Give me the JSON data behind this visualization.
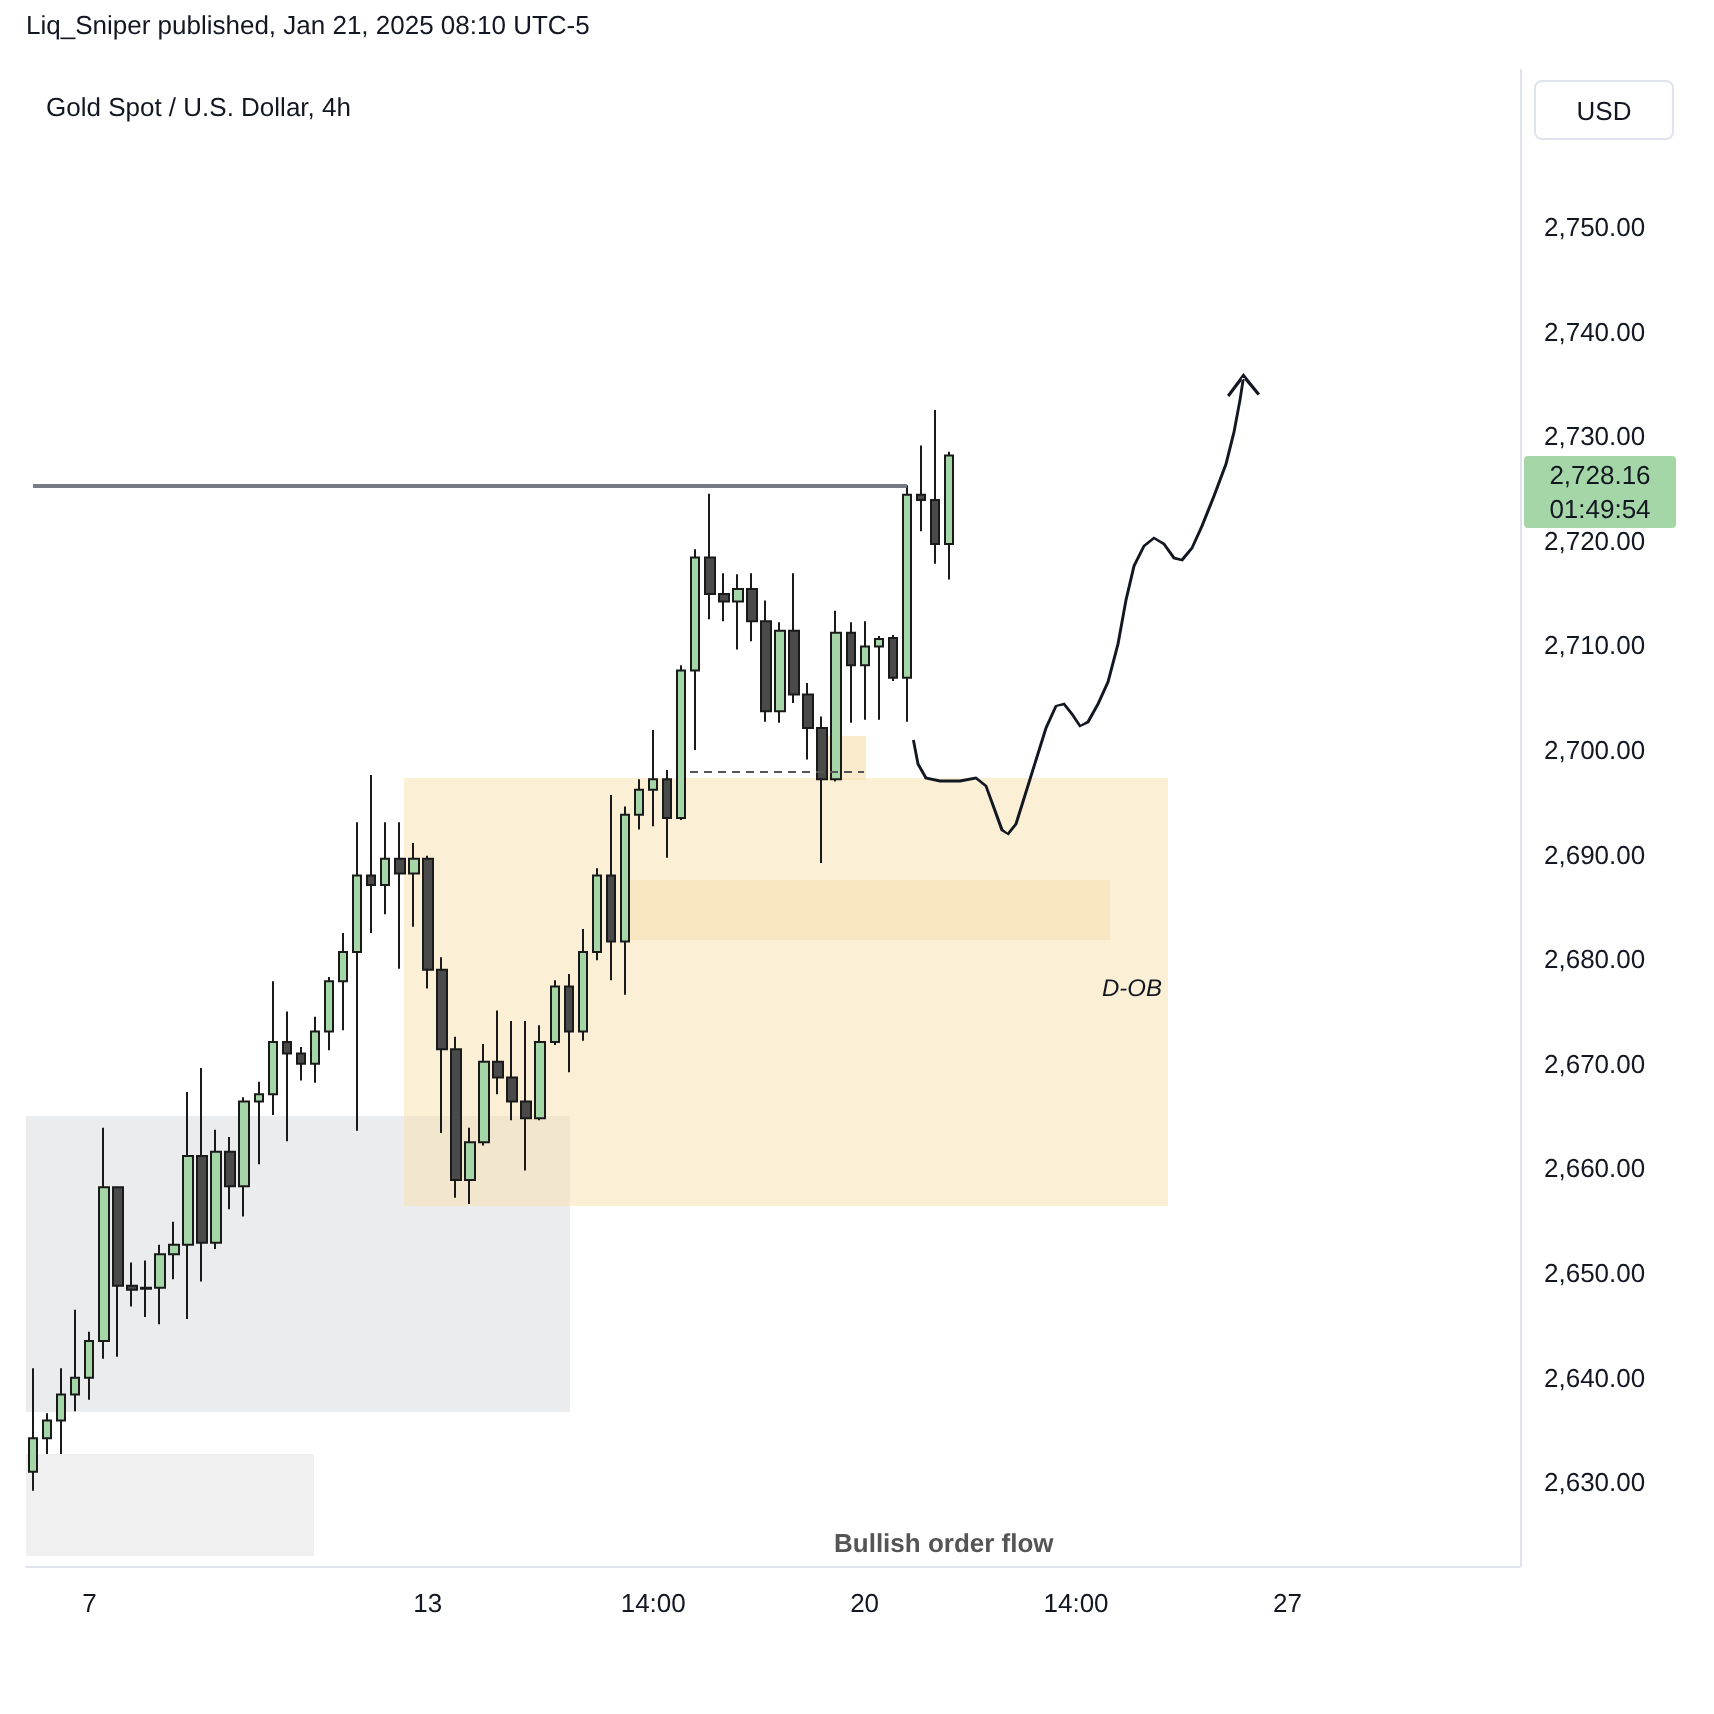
{
  "chart_data": {
    "type": "candlestick",
    "title": "Gold Spot / U.S. Dollar, 4h",
    "ylabel": "USD",
    "grid": false,
    "annotations": [
      "Liq_Sniper published, Jan 21, 2025 08:10 UTC-5",
      "2,728.16",
      "01:49:54",
      "D-OB",
      "Bullish order flow"
    ],
    "ref_lines": [
      {
        "axis": "y",
        "value": 2725.3,
        "color": "#787b86"
      }
    ],
    "ylim": [
      2622,
      2765
    ],
    "yticks": [
      {
        "value": 2630,
        "label": "2,630.00"
      },
      {
        "value": 2640,
        "label": "2,640.00"
      },
      {
        "value": 2650,
        "label": "2,650.00"
      },
      {
        "value": 2660,
        "label": "2,660.00"
      },
      {
        "value": 2670,
        "label": "2,670.00"
      },
      {
        "value": 2680,
        "label": "2,680.00"
      },
      {
        "value": 2690,
        "label": "2,690.00"
      },
      {
        "value": 2700,
        "label": "2,700.00"
      },
      {
        "value": 2710,
        "label": "2,710.00"
      },
      {
        "value": 2720,
        "label": "2,720.00"
      },
      {
        "value": 2730,
        "label": "2,730.00"
      },
      {
        "value": 2740,
        "label": "2,740.00"
      },
      {
        "value": 2750,
        "label": "2,750.00"
      }
    ],
    "categories": [
      null,
      null,
      null,
      null,
      "7",
      null,
      null,
      null,
      null,
      null,
      null,
      null,
      null,
      null,
      null,
      null,
      null,
      null,
      null,
      null,
      null,
      null,
      null,
      null,
      null,
      null,
      null,
      null,
      "13",
      null,
      null,
      null,
      null,
      null,
      null,
      null,
      null,
      null,
      null,
      null,
      null,
      null,
      null,
      null,
      "14:00",
      null,
      null,
      null,
      null,
      null,
      null,
      null,
      null,
      null,
      null,
      null,
      null,
      null,
      null,
      "20",
      null,
      null,
      null,
      null,
      null,
      null,
      null,
      null,
      null,
      null,
      null,
      null,
      null,
      null,
      "14:00",
      null,
      null,
      null,
      null,
      null,
      null,
      null,
      null,
      null,
      null,
      null,
      null,
      null,
      null,
      "27",
      null,
      null,
      null,
      null,
      null,
      null,
      null,
      null,
      null,
      null,
      null,
      null,
      null,
      null,
      null,
      null
    ],
    "colors": [
      "#a5d6a7",
      "#a5d6a7",
      "#a5d6a7",
      "#a5d6a7",
      "#a5d6a7",
      "#a5d6a7",
      "#4a4a4a",
      "#4a4a4a",
      "#a5d6a7",
      "#a5d6a7",
      "#a5d6a7",
      "#a5d6a7",
      "#4a4a4a",
      "#a5d6a7",
      "#4a4a4a",
      "#a5d6a7",
      "#a5d6a7",
      "#a5d6a7",
      "#4a4a4a",
      "#4a4a4a",
      "#a5d6a7",
      "#a5d6a7",
      "#a5d6a7",
      "#a5d6a7",
      "#4a4a4a",
      "#a5d6a7",
      "#4a4a4a",
      "#a5d6a7",
      "#4a4a4a",
      "#4a4a4a",
      "#4a4a4a",
      "#a5d6a7",
      "#a5d6a7",
      "#4a4a4a",
      "#4a4a4a",
      "#4a4a4a",
      "#a5d6a7",
      "#a5d6a7",
      "#4a4a4a",
      "#a5d6a7",
      "#a5d6a7",
      "#4a4a4a",
      "#a5d6a7",
      "#a5d6a7",
      "#a5d6a7",
      "#4a4a4a",
      "#a5d6a7",
      "#a5d6a7",
      "#4a4a4a",
      "#4a4a4a",
      "#a5d6a7",
      "#4a4a4a",
      "#4a4a4a",
      "#a5d6a7",
      "#4a4a4a",
      "#4a4a4a",
      "#4a4a4a",
      "#a5d6a7",
      "#4a4a4a",
      "#a5d6a7",
      "#a5d6a7",
      "#4a4a4a",
      "#a5d6a7",
      "#4a4a4a",
      "#4a4a4a",
      "#a5d6a7",
      null,
      null,
      null,
      null,
      null,
      null,
      null,
      null,
      null,
      null,
      null,
      null,
      null,
      null,
      null,
      null,
      null,
      null,
      null,
      null,
      null,
      null,
      null,
      null,
      null,
      null,
      null,
      null,
      null,
      null,
      null,
      null,
      null,
      null,
      null,
      null,
      null,
      null,
      null,
      null
    ],
    "ohlc": [
      [
        2631.0,
        2640.9,
        2629.2,
        2634.2
      ],
      [
        2634.2,
        2636.6,
        2632.7,
        2635.9
      ],
      [
        2635.9,
        2640.9,
        2632.7,
        2638.4
      ],
      [
        2638.4,
        2646.5,
        2636.8,
        2640.0
      ],
      [
        2640.0,
        2644.4,
        2637.9,
        2643.5
      ],
      [
        2643.5,
        2663.9,
        2641.8,
        2658.2
      ],
      [
        2658.2,
        2658.2,
        2642.0,
        2648.8
      ],
      [
        2648.8,
        2651.0,
        2646.8,
        2648.4
      ],
      [
        2648.5,
        2651.2,
        2645.8,
        2648.6
      ],
      [
        2648.6,
        2652.7,
        2645.1,
        2651.8
      ],
      [
        2651.8,
        2654.9,
        2649.4,
        2652.7
      ],
      [
        2652.7,
        2667.3,
        2645.6,
        2661.2
      ],
      [
        2661.2,
        2669.6,
        2649.2,
        2652.9
      ],
      [
        2652.9,
        2663.7,
        2652.3,
        2661.6
      ],
      [
        2661.6,
        2663.0,
        2656.1,
        2658.3
      ],
      [
        2658.3,
        2666.8,
        2655.4,
        2666.4
      ],
      [
        2666.4,
        2668.3,
        2660.4,
        2667.1
      ],
      [
        2667.1,
        2677.9,
        2665.1,
        2672.1
      ],
      [
        2672.1,
        2675.0,
        2662.6,
        2671.0
      ],
      [
        2671.0,
        2671.6,
        2668.4,
        2670.0
      ],
      [
        2670.0,
        2674.5,
        2668.2,
        2673.1
      ],
      [
        2673.1,
        2678.3,
        2671.3,
        2677.9
      ],
      [
        2677.9,
        2682.5,
        2673.2,
        2680.7
      ],
      [
        2680.7,
        2693.1,
        2663.6,
        2688.0
      ],
      [
        2688.0,
        2697.6,
        2682.5,
        2687.1
      ],
      [
        2687.1,
        2693.1,
        2684.3,
        2689.6
      ],
      [
        2689.6,
        2693.1,
        2679.1,
        2688.2
      ],
      [
        2688.2,
        2691.1,
        2683.1,
        2689.6
      ],
      [
        2689.6,
        2689.9,
        2677.2,
        2679.0
      ],
      [
        2679.0,
        2680.2,
        2663.4,
        2671.4
      ],
      [
        2671.4,
        2672.6,
        2657.2,
        2658.9
      ],
      [
        2658.9,
        2663.9,
        2656.6,
        2662.5
      ],
      [
        2662.5,
        2671.9,
        2662.2,
        2670.2
      ],
      [
        2670.2,
        2675.1,
        2667.1,
        2668.7
      ],
      [
        2668.7,
        2674.1,
        2664.6,
        2666.4
      ],
      [
        2666.4,
        2674.1,
        2659.8,
        2664.8
      ],
      [
        2664.8,
        2673.7,
        2664.6,
        2672.1
      ],
      [
        2672.1,
        2678.0,
        2671.8,
        2677.4
      ],
      [
        2677.4,
        2678.6,
        2669.2,
        2673.1
      ],
      [
        2673.1,
        2682.9,
        2672.2,
        2680.7
      ],
      [
        2680.7,
        2688.7,
        2679.9,
        2688.0
      ],
      [
        2688.0,
        2695.7,
        2678.0,
        2681.7
      ],
      [
        2681.7,
        2694.6,
        2676.6,
        2693.8
      ],
      [
        2693.8,
        2697.2,
        2692.4,
        2696.2
      ],
      [
        2696.2,
        2701.9,
        2692.7,
        2697.2
      ],
      [
        2697.2,
        2698.1,
        2689.7,
        2693.5
      ],
      [
        2693.5,
        2708.1,
        2693.3,
        2707.6
      ],
      [
        2707.6,
        2719.2,
        2700.0,
        2718.4
      ],
      [
        2718.4,
        2724.5,
        2712.5,
        2714.9
      ],
      [
        2714.9,
        2716.9,
        2712.3,
        2714.2
      ],
      [
        2714.2,
        2716.8,
        2709.6,
        2715.4
      ],
      [
        2715.4,
        2716.9,
        2710.4,
        2712.3
      ],
      [
        2712.3,
        2714.3,
        2702.7,
        2703.7
      ],
      [
        2703.7,
        2712.2,
        2702.6,
        2711.4
      ],
      [
        2711.4,
        2716.9,
        2704.5,
        2705.3
      ],
      [
        2705.3,
        2706.4,
        2699.1,
        2702.1
      ],
      [
        2702.1,
        2703.2,
        2689.2,
        2697.2
      ],
      [
        2697.2,
        2713.3,
        2697.0,
        2711.2
      ],
      [
        2711.2,
        2712.2,
        2702.6,
        2708.1
      ],
      [
        2708.1,
        2712.3,
        2702.9,
        2709.9
      ],
      [
        2709.9,
        2710.9,
        2702.9,
        2710.6
      ],
      [
        2710.7,
        2711.0,
        2706.6,
        2706.9
      ],
      [
        2706.9,
        2725.3,
        2702.7,
        2724.4
      ],
      [
        2724.4,
        2729.1,
        2720.9,
        2723.9
      ],
      [
        2723.9,
        2732.5,
        2717.8,
        2719.7
      ],
      [
        2719.7,
        2728.5,
        2716.3,
        2728.16
      ],
      null,
      null,
      null,
      null,
      null,
      null,
      null,
      null,
      null,
      null,
      null,
      null,
      null,
      null,
      null,
      null,
      null,
      null,
      null,
      null,
      null,
      null,
      null,
      null,
      null,
      null,
      null,
      null,
      null,
      null,
      null,
      null,
      null,
      null,
      null,
      null,
      null,
      null,
      null,
      null
    ]
  }
}
